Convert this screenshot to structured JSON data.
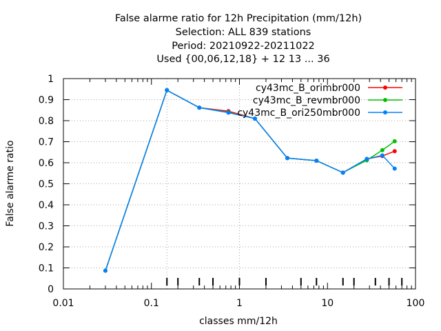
{
  "chart_data": {
    "type": "line",
    "title_lines": [
      "False alarme ratio  for 12h Precipitation (mm/12h)",
      "Selection: ALL    839 stations",
      "Period: 20210922-20211022",
      "Used {00,06,12,18} + 12 13 ... 36"
    ],
    "xlabel": "classes mm/12h",
    "ylabel": "False alarme ratio",
    "x_scale": "log",
    "xlim": [
      0.01,
      100
    ],
    "ylim": [
      0,
      1
    ],
    "x_ticks": [
      0.01,
      0.1,
      1,
      10,
      100
    ],
    "x_tick_labels": [
      "0.01",
      "0.1",
      "1",
      "10",
      "100"
    ],
    "y_ticks": [
      0,
      0.1,
      0.2,
      0.3,
      0.4,
      0.5,
      0.6,
      0.7,
      0.8,
      0.9,
      1
    ],
    "y_tick_labels": [
      "0",
      "0.1",
      "0.2",
      "0.3",
      "0.4",
      "0.5",
      "0.6",
      "0.7",
      "0.8",
      "0.9",
      "1"
    ],
    "class_markers": [
      0.15,
      0.2,
      0.35,
      0.5,
      1,
      2,
      5,
      7.5,
      15,
      20,
      35,
      50,
      70
    ],
    "vertical_dotted_x": [
      0.15,
      1
    ],
    "grid": true,
    "legend_position": "top-right",
    "series": [
      {
        "name": "cy43mc_B_orimbr000",
        "color": "#ff0000",
        "x": [
          0.03,
          0.15,
          0.35,
          0.75,
          1.5,
          3.5,
          7.5,
          15,
          28,
          42,
          58
        ],
        "y": [
          0.087,
          0.945,
          0.862,
          0.845,
          0.81,
          0.622,
          0.61,
          0.553,
          0.618,
          0.632,
          0.655
        ]
      },
      {
        "name": "cy43mc_B_revmbr000",
        "color": "#00c000",
        "x": [
          0.03,
          0.15,
          0.35,
          0.75,
          1.5,
          3.5,
          7.5,
          15,
          28,
          42,
          58
        ],
        "y": [
          0.087,
          0.945,
          0.862,
          0.84,
          0.81,
          0.622,
          0.61,
          0.553,
          0.612,
          0.66,
          0.702
        ]
      },
      {
        "name": "cy43mc_B_ori250mbr000",
        "color": "#0080ff",
        "x": [
          0.03,
          0.15,
          0.35,
          0.75,
          1.5,
          3.5,
          7.5,
          15,
          28,
          42,
          58
        ],
        "y": [
          0.087,
          0.945,
          0.862,
          0.838,
          0.81,
          0.622,
          0.61,
          0.553,
          0.618,
          0.635,
          0.572
        ]
      }
    ]
  }
}
